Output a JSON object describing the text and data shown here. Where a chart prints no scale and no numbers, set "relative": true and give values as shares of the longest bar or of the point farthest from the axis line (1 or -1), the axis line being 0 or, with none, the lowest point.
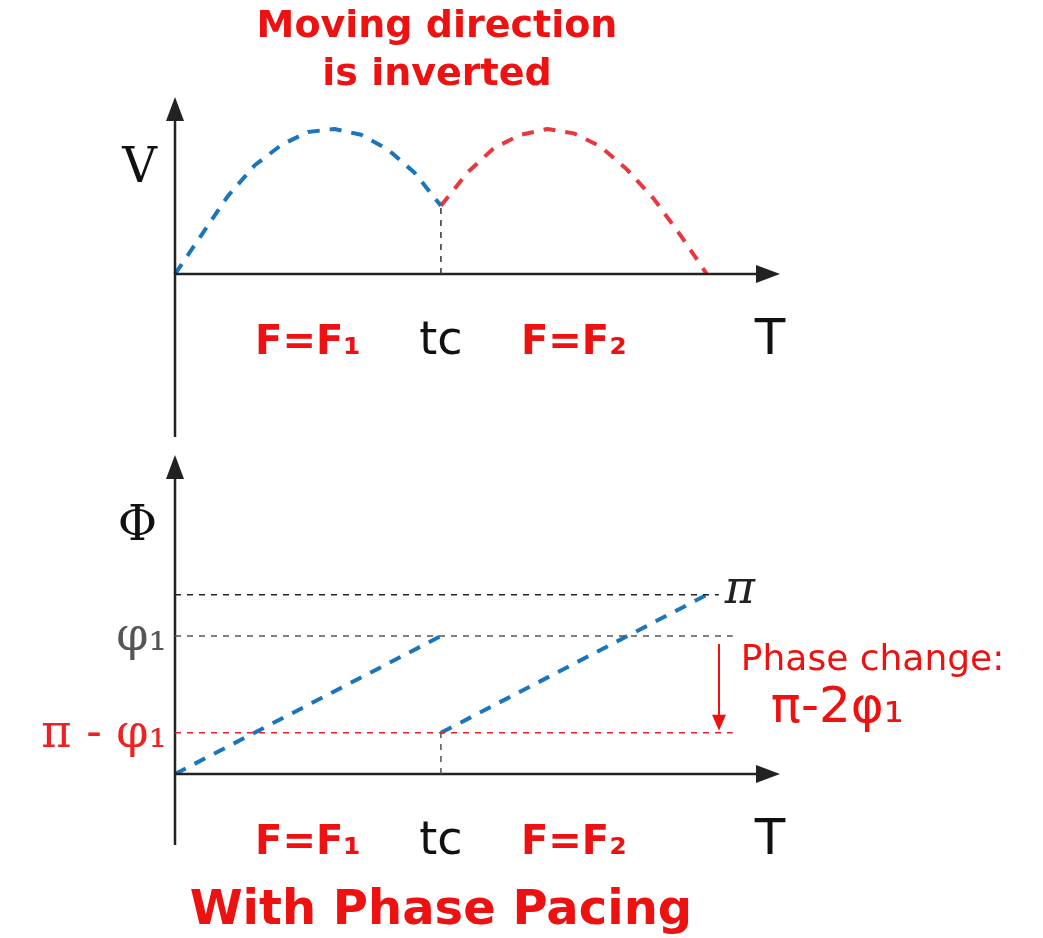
{
  "chart_data": [
    {
      "type": "line",
      "title": "Moving direction is inverted",
      "xlabel": "T",
      "ylabel": "V",
      "relative": true,
      "marker": "none",
      "line_style": "dashed",
      "categories": [
        null,
        null,
        null,
        null,
        null,
        null,
        null,
        null,
        null,
        null,
        null,
        null,
        null,
        null,
        null,
        null,
        null,
        null,
        null,
        null,
        null,
        null,
        null
      ],
      "series": [
        {
          "color": "#1a75bc",
          "values": [
            0,
            0.27,
            0.54,
            0.75,
            0.89,
            0.98,
            1.0,
            0.96,
            0.86,
            0.7,
            0.47,
            null,
            null,
            null,
            null,
            null,
            null,
            null,
            null,
            null,
            null,
            null,
            null
          ]
        },
        {
          "color": "#e8383d",
          "values": [
            null,
            null,
            null,
            null,
            null,
            null,
            null,
            null,
            null,
            null,
            0.47,
            0.7,
            0.87,
            0.96,
            1.0,
            0.97,
            0.88,
            0.72,
            0.52,
            0.27,
            0,
            null,
            null
          ]
        }
      ],
      "ref_lines": [
        {
          "axis": "x",
          "label": "tc",
          "color": "#333333",
          "line_style": "dashed"
        }
      ],
      "annotations": [
        "F=F₁",
        "F=F₂"
      ]
    },
    {
      "type": "line",
      "xlabel": "T",
      "ylabel": "Φ",
      "relative": true,
      "marker": "none",
      "line_style": "dashed",
      "categories": [
        null,
        null,
        null,
        null,
        null,
        null,
        null,
        null,
        null,
        null,
        null,
        null,
        null,
        null,
        null,
        null,
        null,
        null,
        null,
        null,
        null,
        null,
        null
      ],
      "series": [
        {
          "color": "#1a75bc",
          "values": [
            0,
            null,
            null,
            null,
            null,
            null,
            null,
            null,
            null,
            null,
            0.77,
            null,
            null,
            null,
            null,
            null,
            null,
            null,
            null,
            null,
            null,
            null,
            null
          ]
        },
        {
          "color": "#1a75bc",
          "values": [
            null,
            null,
            null,
            null,
            null,
            null,
            null,
            null,
            null,
            null,
            0.23,
            null,
            null,
            null,
            null,
            null,
            null,
            null,
            null,
            null,
            1,
            null,
            null
          ]
        }
      ],
      "ref_lines": [
        {
          "axis": "y",
          "value": 1,
          "label": "π",
          "color": "#222222",
          "line_style": "dashed"
        },
        {
          "axis": "y",
          "value": 0.77,
          "label": "φ₁",
          "color": "#555555",
          "line_style": "dashed"
        },
        {
          "axis": "y",
          "value": 0.23,
          "label": "π - φ₁",
          "color": "#ee2222",
          "line_style": "dashed"
        },
        {
          "axis": "x",
          "label": "tc",
          "color": "#555555",
          "line_style": "dashed"
        }
      ],
      "annotations": [
        "F=F₁",
        "F=F₂",
        "Phase change: π-2φ₁",
        "With Phase Pacing"
      ]
    }
  ]
}
